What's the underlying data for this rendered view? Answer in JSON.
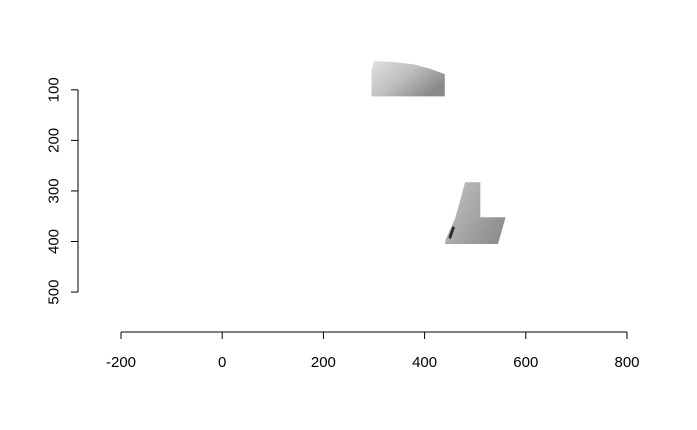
{
  "chart_data": {
    "type": "heatmap",
    "title": "",
    "xlabel": "",
    "ylabel": "",
    "xlim": [
      -200,
      800
    ],
    "ylim": [
      45,
      575
    ],
    "y_reversed": true,
    "grid": false,
    "x_ticks": [
      {
        "value": -200,
        "label": "-200"
      },
      {
        "value": 0,
        "label": "0"
      },
      {
        "value": 200,
        "label": "200"
      },
      {
        "value": 400,
        "label": "400"
      },
      {
        "value": 600,
        "label": "600"
      },
      {
        "value": 800,
        "label": "800"
      }
    ],
    "y_ticks": [
      {
        "value": 100,
        "label": "100"
      },
      {
        "value": 200,
        "label": "200"
      },
      {
        "value": 300,
        "label": "300"
      },
      {
        "value": 400,
        "label": "400"
      },
      {
        "value": 500,
        "label": "500"
      }
    ],
    "colors": {
      "light_gray": "#dcdcdc",
      "mid_gray": "#b4b4b4",
      "dark_gray": "#8a8a8a",
      "near_black": "#2a2a2a"
    },
    "regions": [
      {
        "name": "upper-patch",
        "polygon": [
          [
            295,
            60
          ],
          [
            300,
            43
          ],
          [
            340,
            45
          ],
          [
            380,
            50
          ],
          [
            410,
            58
          ],
          [
            440,
            69
          ],
          [
            440,
            113
          ],
          [
            295,
            113
          ]
        ],
        "gradient": [
          "#e0e0e0",
          "#c0c0c0",
          "#8a8a8a"
        ]
      },
      {
        "name": "lower-patch",
        "polygon": [
          [
            480,
            283
          ],
          [
            510,
            283
          ],
          [
            510,
            352
          ],
          [
            560,
            352
          ],
          [
            545,
            405
          ],
          [
            440,
            405
          ],
          [
            442,
            395
          ],
          [
            460,
            355
          ],
          [
            470,
            320
          ]
        ],
        "gradient": [
          "#c4c4c4",
          "#aaaaaa",
          "#909090"
        ]
      },
      {
        "name": "dark-speck",
        "polygon": [
          [
            455,
            370
          ],
          [
            460,
            372
          ],
          [
            452,
            395
          ],
          [
            447,
            392
          ]
        ],
        "gradient": [
          "#2a2a2a",
          "#2a2a2a",
          "#2a2a2a"
        ]
      }
    ]
  }
}
